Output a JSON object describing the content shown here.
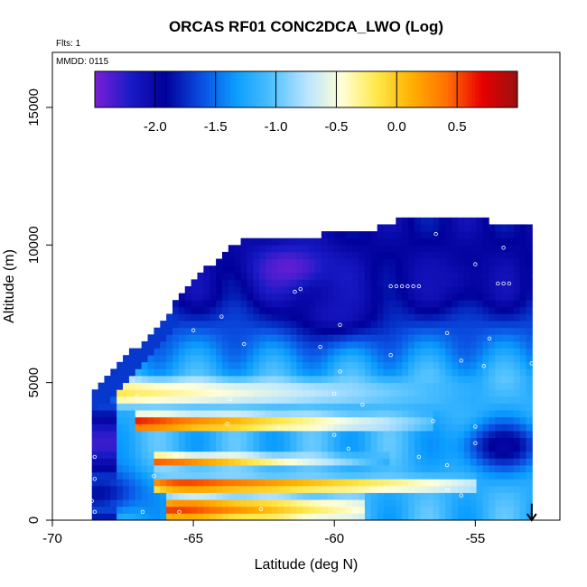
{
  "chart_data": {
    "type": "heatmap",
    "title": "ORCAS RF01 CONC2DCA_LWO (Log)",
    "annotations": [
      "Flts: 1",
      "MMDD: 0115"
    ],
    "xlabel": "Latitude (deg N)",
    "ylabel": "Altitude (m)",
    "xlim": [
      -70,
      -52
    ],
    "ylim": [
      0,
      17000
    ],
    "x_ticks": [
      -70,
      -65,
      -60,
      -55
    ],
    "y_ticks": [
      0,
      5000,
      10000,
      15000
    ],
    "colorbar": {
      "range": [
        -2.5,
        1.0
      ],
      "ticks": [
        -2.0,
        -1.5,
        -1.0,
        -0.5,
        0.0,
        0.5
      ],
      "tick_labels": [
        "-2.0",
        "-1.5",
        "-1.0",
        "-0.5",
        "0.0",
        "0.5"
      ],
      "colors": [
        "#7a1fd6",
        "#1b1bc8",
        "#00009a",
        "#0a4ce0",
        "#0a9cff",
        "#4ec0ff",
        "#b8e4ff",
        "#ffffd8",
        "#ffe84a",
        "#ffb000",
        "#ff7000",
        "#e80000",
        "#9a1010"
      ]
    },
    "grid": false,
    "cell_size": {
      "lat": 0.22,
      "alt": 250
    },
    "boundary": {
      "lat_min": -68.6,
      "lat_max": -53.0,
      "top_altitude_profile": [
        {
          "lat": -68.6,
          "alt": 4600
        },
        {
          "lat": -68.0,
          "alt": 5100
        },
        {
          "lat": -67.4,
          "alt": 5800
        },
        {
          "lat": -66.6,
          "alt": 6600
        },
        {
          "lat": -65.6,
          "alt": 7800
        },
        {
          "lat": -64.6,
          "alt": 9000
        },
        {
          "lat": -63.4,
          "alt": 10000
        },
        {
          "lat": -61.0,
          "alt": 10200
        },
        {
          "lat": -58.7,
          "alt": 10400
        },
        {
          "lat": -57.6,
          "alt": 10900
        },
        {
          "lat": -56.0,
          "alt": 11000
        },
        {
          "lat": -55.0,
          "alt": 10900
        },
        {
          "lat": -54.2,
          "alt": 10600
        },
        {
          "lat": -53.0,
          "alt": 10600
        }
      ]
    },
    "bands": [
      {
        "alt": [
          0,
          800
        ],
        "lat_start": -66.0,
        "lat_end": -59.0,
        "left": 0.7,
        "right": -0.5
      },
      {
        "alt": [
          1100,
          1500
        ],
        "lat_start": -66.5,
        "lat_end": -55.0,
        "left": 0.8,
        "right": -0.6
      },
      {
        "alt": [
          2000,
          2300
        ],
        "lat_start": -66.5,
        "lat_end": -58.0,
        "left": 0.6,
        "right": -1.2
      },
      {
        "alt": [
          3300,
          3800
        ],
        "lat_start": -67.0,
        "lat_end": -56.5,
        "left": 0.7,
        "right": -1.0
      },
      {
        "alt": [
          4200,
          5100
        ],
        "lat_start": -68.6,
        "lat_end": -55.0,
        "left": -0.1,
        "right": -1.2
      }
    ],
    "low_regions": [
      {
        "lat": -61.5,
        "alt": 9200,
        "value": -2.5
      },
      {
        "lat": -60.0,
        "alt": 7500,
        "value": -2.2
      },
      {
        "lat": -56.0,
        "alt": 8800,
        "value": -2.1
      },
      {
        "lat": -54.0,
        "alt": 2700,
        "value": -2.1
      },
      {
        "lat": -68.3,
        "alt": 1000,
        "value": -2.0
      }
    ],
    "data_points": [
      {
        "lat": -55.6,
        "alt": 11200
      },
      {
        "lat": -56.4,
        "alt": 10400
      },
      {
        "lat": -54.0,
        "alt": 9900
      },
      {
        "lat": -55.0,
        "alt": 9300
      },
      {
        "lat": -58.0,
        "alt": 8500
      },
      {
        "lat": -57.8,
        "alt": 8500
      },
      {
        "lat": -57.6,
        "alt": 8500
      },
      {
        "lat": -57.4,
        "alt": 8500
      },
      {
        "lat": -57.2,
        "alt": 8500
      },
      {
        "lat": -57.0,
        "alt": 8500
      },
      {
        "lat": -54.2,
        "alt": 8600
      },
      {
        "lat": -54.0,
        "alt": 8600
      },
      {
        "lat": -53.8,
        "alt": 8600
      },
      {
        "lat": -61.2,
        "alt": 8400
      },
      {
        "lat": -61.4,
        "alt": 8300
      },
      {
        "lat": -64.0,
        "alt": 7400
      },
      {
        "lat": -65.0,
        "alt": 6900
      },
      {
        "lat": -59.8,
        "alt": 7100
      },
      {
        "lat": -56.0,
        "alt": 6800
      },
      {
        "lat": -54.5,
        "alt": 6600
      },
      {
        "lat": -63.2,
        "alt": 6400
      },
      {
        "lat": -60.5,
        "alt": 6300
      },
      {
        "lat": -58.0,
        "alt": 6000
      },
      {
        "lat": -55.5,
        "alt": 5800
      },
      {
        "lat": -53.0,
        "alt": 5700
      },
      {
        "lat": -59.8,
        "alt": 5400
      },
      {
        "lat": -54.7,
        "alt": 5600
      },
      {
        "lat": -60.0,
        "alt": 4600
      },
      {
        "lat": -63.7,
        "alt": 4400
      },
      {
        "lat": -67.0,
        "alt": 4500
      },
      {
        "lat": -59.0,
        "alt": 4200
      },
      {
        "lat": -56.5,
        "alt": 3600
      },
      {
        "lat": -55.0,
        "alt": 3400
      },
      {
        "lat": -62.0,
        "alt": 3400
      },
      {
        "lat": -63.8,
        "alt": 3500
      },
      {
        "lat": -60.0,
        "alt": 3100
      },
      {
        "lat": -55.0,
        "alt": 2800
      },
      {
        "lat": -59.5,
        "alt": 2600
      },
      {
        "lat": -57.0,
        "alt": 2300
      },
      {
        "lat": -56.0,
        "alt": 2000
      },
      {
        "lat": -68.5,
        "alt": 2300
      },
      {
        "lat": -68.5,
        "alt": 1500
      },
      {
        "lat": -66.4,
        "alt": 1600
      },
      {
        "lat": -56.0,
        "alt": 1100
      },
      {
        "lat": -55.5,
        "alt": 900
      },
      {
        "lat": -68.6,
        "alt": 700
      },
      {
        "lat": -68.5,
        "alt": 300
      },
      {
        "lat": -66.8,
        "alt": 300
      },
      {
        "lat": -62.6,
        "alt": 400
      },
      {
        "lat": -65.5,
        "alt": 300
      }
    ],
    "marker": {
      "type": "arrow",
      "lat": -53.0,
      "alt_from": 600,
      "alt_to": 0
    }
  }
}
